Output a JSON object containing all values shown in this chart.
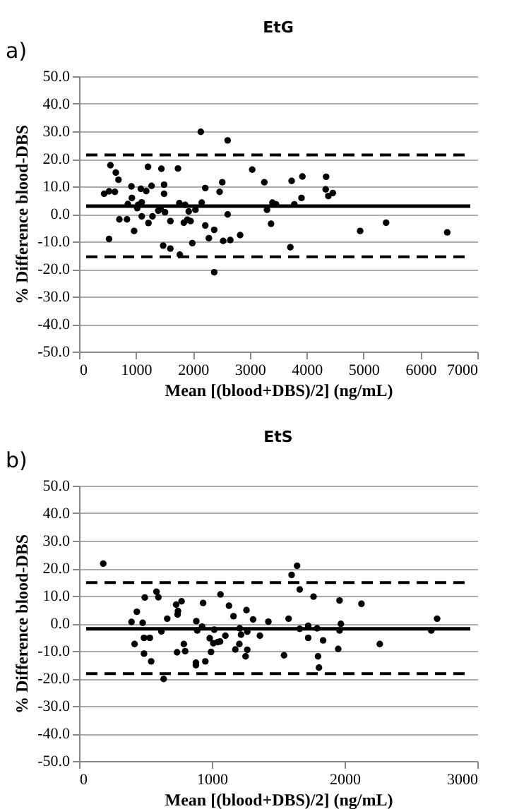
{
  "chart_data": [
    {
      "type": "scatter",
      "title": "EtG",
      "xlabel": "Mean [(blood+DBS)/2] (ng/mL)",
      "ylabel": "% Difference blood-DBS",
      "annotations": [
        "a)"
      ],
      "xlim": [
        0,
        7000
      ],
      "xticks": [
        0,
        1000,
        2000,
        3000,
        4000,
        5000,
        6000,
        7000
      ],
      "ylim": [
        -50,
        50
      ],
      "yticks": [
        {
          "value": -50,
          "label": "-50.0"
        },
        {
          "value": -40,
          "label": "-40.0"
        },
        {
          "value": -30,
          "label": "-30.0"
        },
        {
          "value": -20,
          "label": "-20.0"
        },
        {
          "value": -10,
          "label": "-10.0"
        },
        {
          "value": 0,
          "label": "0.0"
        },
        {
          "value": 10,
          "label": "10.0"
        },
        {
          "value": 20,
          "label": "20.0"
        },
        {
          "value": 30,
          "label": "30.0"
        },
        {
          "value": 40,
          "label": "40.0"
        },
        {
          "value": 50,
          "label": "50.0"
        }
      ],
      "grid": "y",
      "marker": "circle",
      "ref_lines": [
        {
          "axis": "y",
          "value": 2.8,
          "color": "#000000",
          "line_style": "solid"
        },
        {
          "axis": "y",
          "value": 21.4,
          "color": "#000000",
          "line_style": "dashed"
        },
        {
          "axis": "y",
          "value": -15.6,
          "color": "#000000",
          "line_style": "dashed"
        }
      ],
      "series": [
        {
          "color": "#000000",
          "x": [
            440,
            527,
            551,
            629,
            645,
            692,
            708,
            842,
            857,
            920,
            928,
            967,
            1022,
            1038,
            1085,
            1101,
            1101,
            1180,
            1211,
            1219,
            1274,
            1290,
            1392,
            1431,
            1447,
            1494,
            1494,
            1510,
            1605,
            1738,
            1762,
            1841,
            1864,
            1903,
            1927,
            1959,
            2045,
            2139,
            2155,
            2218,
            2218,
            2375,
            2470,
            2517,
            2611,
            2611,
            3043,
            3256,
            3303,
            3374,
            3398,
            3461,
            3736,
            3783,
            3909,
            3925,
            4342,
            4334,
            4381,
            4460,
            4940,
            5396,
            6471,
            2831,
            527,
            1478,
            1604,
            1770,
            1990,
            2281,
            2533,
            2658,
            2375,
            3713
          ],
          "values": [
            7.3,
            8.2,
            17.7,
            8.0,
            15,
            12.4,
            -2,
            -2,
            3.6,
            10,
            5.8,
            -6.2,
            2.1,
            3.3,
            9.1,
            4.2,
            -0.9,
            8.3,
            17.1,
            -3.3,
            10.2,
            -0.9,
            1.2,
            1.8,
            16.4,
            10.6,
            7.3,
            0.6,
            -2.6,
            16.5,
            3.9,
            -3.2,
            3.3,
            -2.1,
            0.9,
            -2.6,
            1.5,
            29.8,
            4.1,
            9.4,
            -4.2,
            -5.8,
            8.0,
            11.5,
            26.7,
            -0.2,
            16.1,
            11.5,
            1.5,
            -3.6,
            4.1,
            3.5,
            12,
            3.5,
            5.8,
            13.6,
            13.5,
            8.9,
            6.5,
            7.6,
            -6.2,
            -3.2,
            -6.7,
            -7.7,
            -9.1,
            -11.5,
            -12.6,
            -14.8,
            -10.6,
            -8.8,
            -9.8,
            -9.5,
            -21.2,
            -12.1
          ]
        }
      ]
    },
    {
      "type": "scatter",
      "title": "EtS",
      "xlabel": "Mean [(blood+DBS)/2] (ng/mL)",
      "ylabel": "% Difference blood-DBS",
      "annotations": [
        "b)"
      ],
      "xlim": [
        0,
        3000
      ],
      "xticks": [
        0,
        1000,
        2000,
        3000
      ],
      "ylim": [
        -50,
        50
      ],
      "yticks": [
        {
          "value": -50,
          "label": "-50.0"
        },
        {
          "value": -40,
          "label": "-40.0"
        },
        {
          "value": -30,
          "label": "-30.0"
        },
        {
          "value": -20,
          "label": "-20.0"
        },
        {
          "value": -10,
          "label": "-10.0"
        },
        {
          "value": 0,
          "label": "0.0"
        },
        {
          "value": 10,
          "label": "10.0"
        },
        {
          "value": 20,
          "label": "20.0"
        },
        {
          "value": 30,
          "label": "30.0"
        },
        {
          "value": 40,
          "label": "40.0"
        },
        {
          "value": 50,
          "label": "50.0"
        }
      ],
      "grid": "y",
      "marker": "circle",
      "ref_lines": [
        {
          "axis": "y",
          "value": -2.0,
          "color": "#000000",
          "line_style": "solid"
        },
        {
          "axis": "y",
          "value": 14.8,
          "color": "#000000",
          "line_style": "dashed"
        },
        {
          "axis": "y",
          "value": -18.3,
          "color": "#000000",
          "line_style": "dashed"
        }
      ],
      "series": [
        {
          "color": "#000000",
          "x": [
            182,
            435,
            495,
            583,
            597,
            731,
            745,
            772,
            934,
            1065,
            1129,
            1261,
            1601,
            1642,
            1662,
            1766,
            1962,
            2127,
            395,
            418,
            479,
            489,
            489,
            533,
            543,
            620,
            637,
            664,
            742,
            738,
            789,
            799,
            883,
            890,
            880,
            880,
            927,
            951,
            984,
            994,
            1011,
            1018,
            1045,
            1062,
            1102,
            1163,
            1177,
            1210,
            1207,
            1220,
            1254,
            1267,
            1267,
            1311,
            1362,
            1426,
            1544,
            1578,
            1662,
            1726,
            1726,
            1793,
            1800,
            1807,
            1838,
            1952,
            1962,
            1972,
            2265,
            2653,
            2697
          ],
          "values": [
            21.7,
            4.2,
            9.4,
            11.5,
            9.5,
            6.8,
            4.5,
            8.0,
            7.4,
            10.5,
            6.4,
            4.8,
            17.6,
            20.9,
            12.3,
            9.7,
            8.3,
            7.1,
            0.5,
            -7.5,
            0.2,
            -5.3,
            -11.0,
            -5.3,
            -13.8,
            -2.9,
            -20.2,
            1.7,
            3.2,
            -10.5,
            -7.5,
            -10.1,
            0.8,
            -2.6,
            -14.3,
            -15.2,
            -1.2,
            -13.8,
            -5.4,
            -10.4,
            -7.2,
            -2.3,
            -6.8,
            -6.6,
            -4.5,
            2.6,
            -9.5,
            -1.8,
            -7.5,
            -4.1,
            -12.0,
            -3.0,
            -9.6,
            1.4,
            -4.5,
            0.6,
            -11.6,
            1.7,
            -2.0,
            -0.9,
            -5.3,
            -1.8,
            -12.0,
            -16.1,
            -6.2,
            -9.3,
            -2.6,
            -0.2,
            -7.5,
            -2.6,
            1.7
          ]
        }
      ]
    }
  ]
}
